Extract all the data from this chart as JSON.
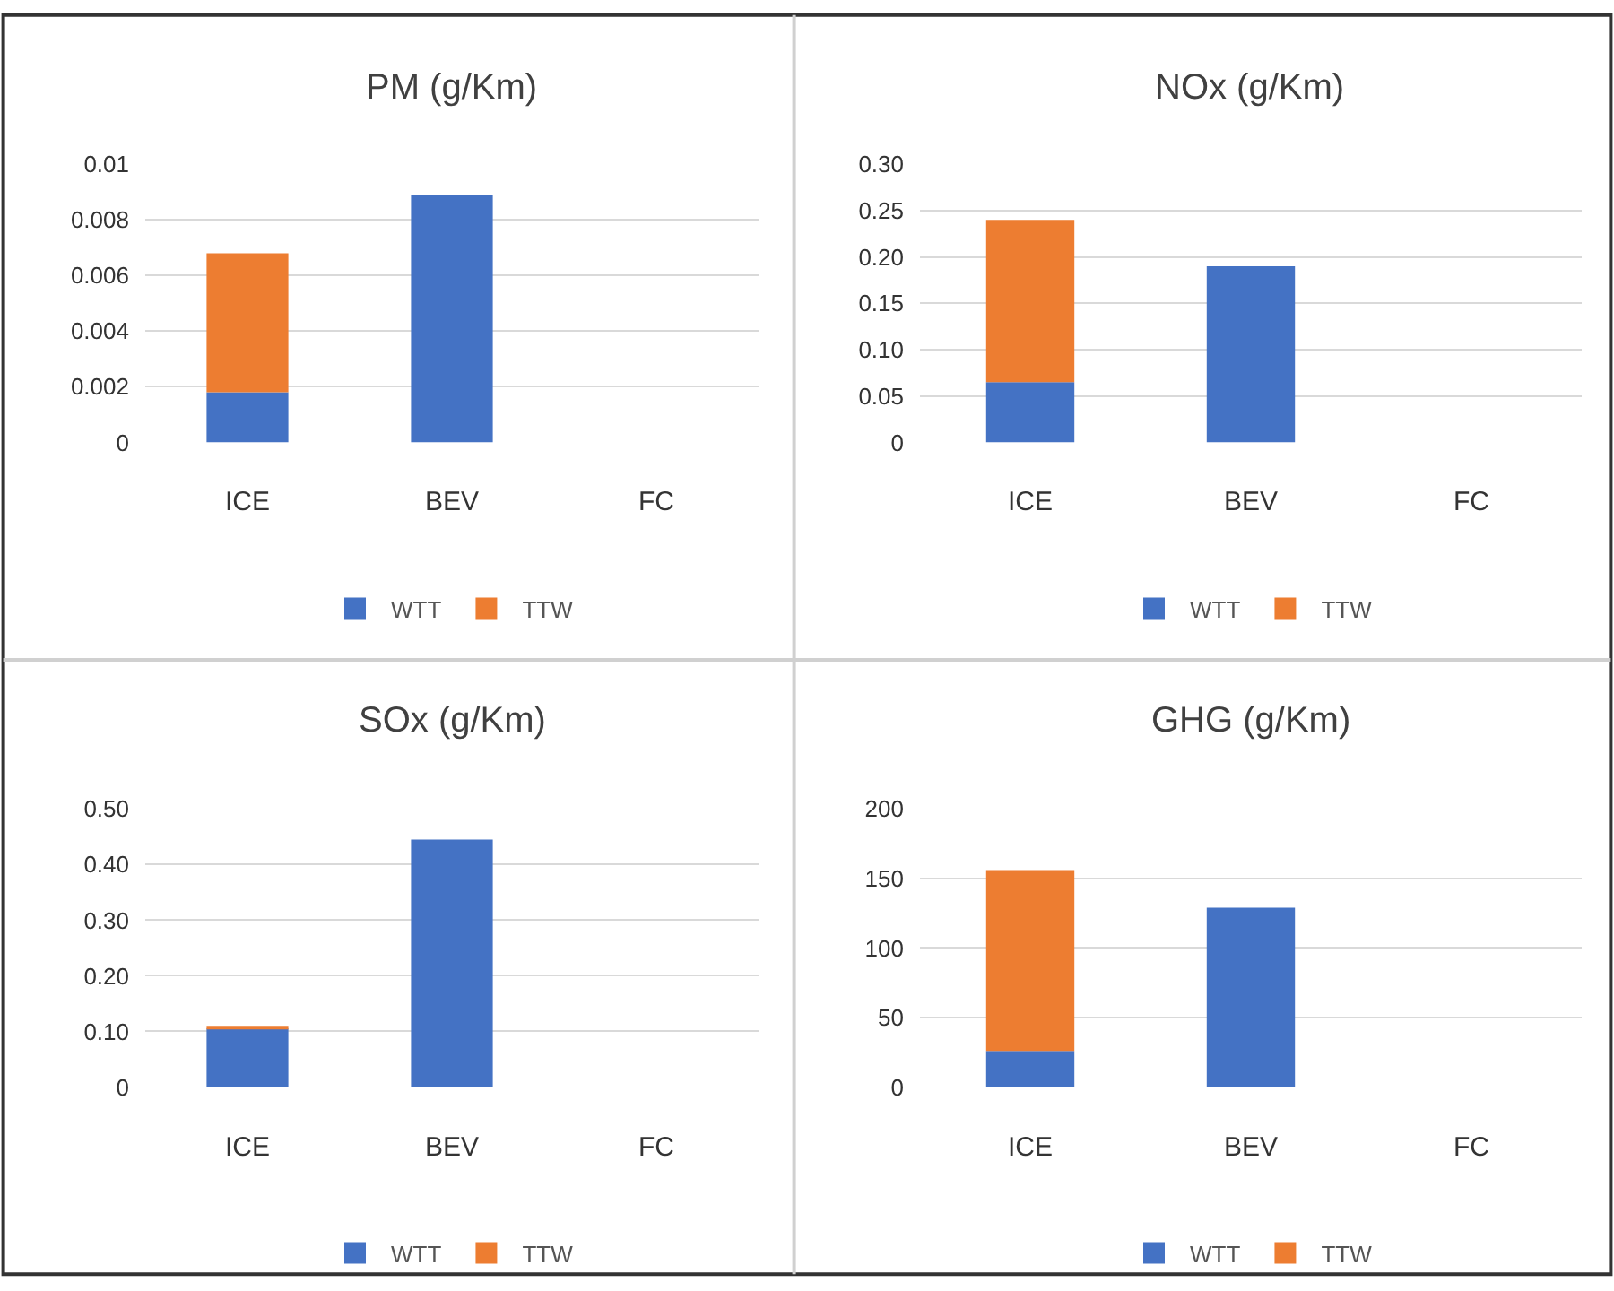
{
  "chart_data": [
    {
      "type": "bar",
      "title": "PM (g/Km)",
      "stacked": true,
      "categories": [
        "ICE",
        "BEV",
        "FC"
      ],
      "series": [
        {
          "name": "WTT",
          "color": "#4472c4",
          "values": [
            0.0018,
            0.0089,
            null
          ]
        },
        {
          "name": "TTW",
          "color": "#ed7d31",
          "values": [
            0.005,
            null,
            null
          ]
        }
      ],
      "ylim": [
        0,
        0.01
      ],
      "yticks": [
        0,
        0.002,
        0.004,
        0.006,
        0.008,
        0.01
      ],
      "grid": "y",
      "legend": "bottom"
    },
    {
      "type": "bar",
      "title": "NOx (g/Km)",
      "stacked": true,
      "categories": [
        "ICE",
        "BEV",
        "FC"
      ],
      "series": [
        {
          "name": "WTT",
          "color": "#4472c4",
          "values": [
            0.065,
            0.19,
            null
          ]
        },
        {
          "name": "TTW",
          "color": "#ed7d31",
          "values": [
            0.175,
            null,
            null
          ]
        }
      ],
      "ylim": [
        0,
        0.3
      ],
      "yticks": [
        0,
        {
          "value": 0.05,
          "label": "0.05"
        },
        {
          "value": 0.1,
          "label": "0.10"
        },
        {
          "value": 0.15,
          "label": "0.15"
        },
        {
          "value": 0.2,
          "label": "0.20"
        },
        {
          "value": 0.25,
          "label": "0.25"
        },
        {
          "value": 0.3,
          "label": "0.30"
        }
      ],
      "grid": "y",
      "legend": "bottom"
    },
    {
      "type": "bar",
      "title": "SOx (g/Km)",
      "stacked": true,
      "categories": [
        "ICE",
        "BEV",
        "FC"
      ],
      "series": [
        {
          "name": "WTT",
          "color": "#4472c4",
          "values": [
            0.105,
            0.445,
            null
          ]
        },
        {
          "name": "TTW",
          "color": "#ed7d31",
          "values": [
            0.002,
            null,
            null
          ]
        }
      ],
      "ylim": [
        0,
        0.5
      ],
      "yticks": [
        0,
        {
          "value": 0.1,
          "label": "0.10"
        },
        {
          "value": 0.2,
          "label": "0.20"
        },
        {
          "value": 0.3,
          "label": "0.30"
        },
        {
          "value": 0.4,
          "label": "0.40"
        },
        {
          "value": 0.5,
          "label": "0.50"
        }
      ],
      "grid": "y",
      "legend": "bottom"
    },
    {
      "type": "bar",
      "title": "GHG (g/Km)",
      "stacked": true,
      "categories": [
        "ICE",
        "BEV",
        "FC"
      ],
      "series": [
        {
          "name": "WTT",
          "color": "#4472c4",
          "values": [
            26,
            129,
            null
          ]
        },
        {
          "name": "TTW",
          "color": "#ed7d31",
          "values": [
            130,
            null,
            null
          ]
        }
      ],
      "ylim": [
        0,
        200
      ],
      "yticks": [
        0,
        50,
        100,
        150,
        200
      ],
      "grid": "y",
      "legend": "bottom"
    }
  ]
}
